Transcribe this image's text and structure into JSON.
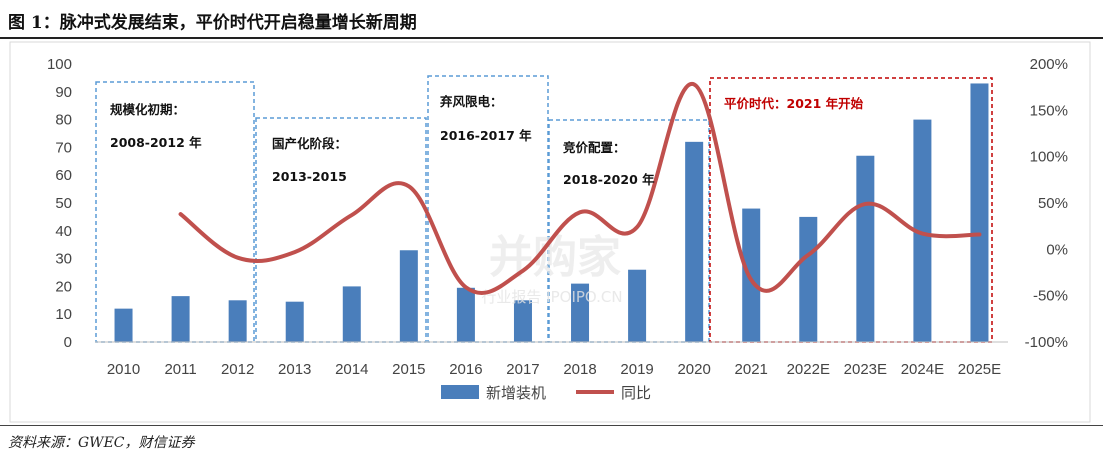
{
  "figure": {
    "title": "图 1：脉冲式发展结束，平价时代开启稳量增长新周期",
    "source": "资料来源：GWEC，财信证券"
  },
  "watermark": {
    "main": "并购家",
    "sub": "行业报告 IPOIPO.CN"
  },
  "annotations": [
    {
      "lines": [
        "规模化初期：",
        "2008-2012 年"
      ],
      "style": "blue"
    },
    {
      "lines": [
        "国产化阶段：",
        "2013-2015"
      ],
      "style": "blue"
    },
    {
      "lines": [
        "弃风限电：",
        "2016-2017 年"
      ],
      "style": "blue"
    },
    {
      "lines": [
        "竞价配置：",
        "2018-2020 年"
      ],
      "style": "blue"
    },
    {
      "lines": [
        "平价时代：2021 年开始"
      ],
      "style": "red"
    }
  ],
  "colors": {
    "bar": "#4a7ebb",
    "line": "#c0504d",
    "box_blue": "#5b9bd5",
    "box_red": "#c00000",
    "axis_text": "#444444"
  },
  "chart_data": {
    "type": "bar",
    "categories": [
      "2010",
      "2011",
      "2012",
      "2013",
      "2014",
      "2015",
      "2016",
      "2017",
      "2018",
      "2019",
      "2020",
      "2021",
      "2022E",
      "2023E",
      "2024E",
      "2025E"
    ],
    "series": [
      {
        "name": "新增装机",
        "type": "bar",
        "axis": "left",
        "values": [
          12,
          16.5,
          15,
          14.5,
          20,
          33,
          19.5,
          15,
          21,
          26,
          72,
          48,
          45,
          67,
          80,
          93
        ]
      },
      {
        "name": "同比",
        "type": "line",
        "axis": "right",
        "values": [
          null,
          38,
          -9,
          -3,
          37,
          68,
          -41,
          -23,
          40,
          24,
          178,
          -33,
          -6,
          49,
          17,
          16
        ]
      }
    ],
    "left_axis": {
      "min": 0,
      "max": 100,
      "step": 10,
      "ticks": [
        "0",
        "10",
        "20",
        "30",
        "40",
        "50",
        "60",
        "70",
        "80",
        "90",
        "100"
      ]
    },
    "right_axis": {
      "min": -100,
      "max": 200,
      "step": 50,
      "ticks": [
        "-100%",
        "-50%",
        "0%",
        "50%",
        "100%",
        "150%",
        "200%"
      ]
    },
    "legend": {
      "position": "bottom",
      "items": [
        "新增装机",
        "同比"
      ]
    },
    "grid": false
  }
}
